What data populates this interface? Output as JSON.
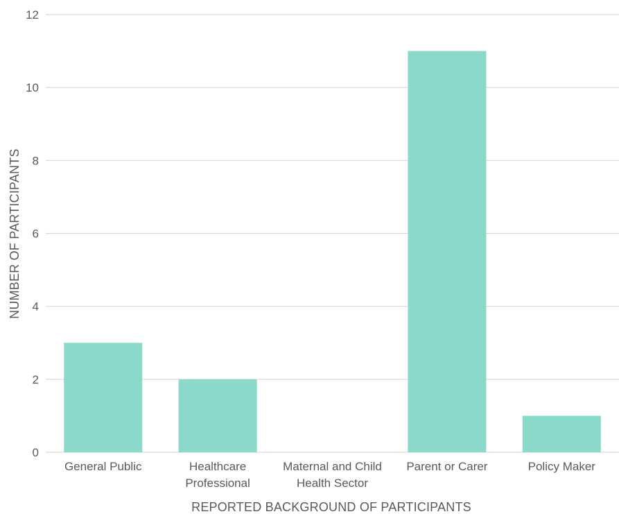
{
  "chart_data": {
    "type": "bar",
    "categories": [
      [
        "General Public"
      ],
      [
        "Healthcare",
        "Professional"
      ],
      [
        "Maternal and Child",
        "Health Sector"
      ],
      [
        "Parent or Carer"
      ],
      [
        "Policy Maker"
      ]
    ],
    "values": [
      3,
      2,
      0,
      11,
      1
    ],
    "xlabel": "REPORTED BACKGROUND OF PARTICIPANTS",
    "ylabel": "NUMBER OF PARTICIPANTS",
    "ylim": [
      0,
      12
    ],
    "yticks": [
      "0",
      "2",
      "4",
      "6",
      "8",
      "10",
      "12"
    ],
    "grid": true,
    "legend": "none",
    "colors": {
      "bar": "#8bd9cb",
      "grid": "#d9d9d9",
      "text": "#595959"
    }
  }
}
